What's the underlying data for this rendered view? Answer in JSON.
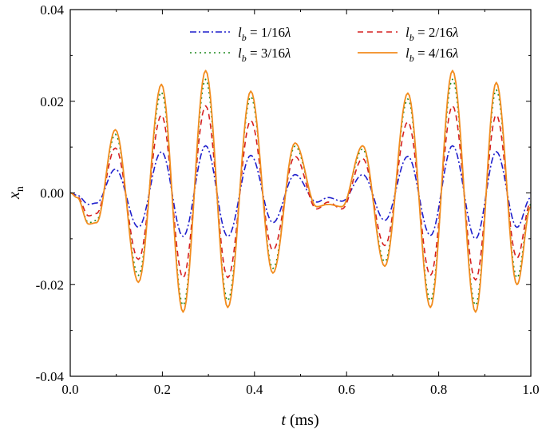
{
  "chart_data": {
    "type": "line",
    "title": "",
    "xlabel": "t (ms)",
    "ylabel": "x_n",
    "xlim": [
      0.0,
      1.0
    ],
    "ylim": [
      -0.04,
      0.04
    ],
    "xticks": [
      "0.0",
      "0.2",
      "0.4",
      "0.6",
      "0.8",
      "1.0"
    ],
    "yticks": [
      "-0.04",
      "-0.02",
      "0.00",
      "0.02",
      "0.04"
    ],
    "legend_position": "top-right",
    "grid": false,
    "series": [
      {
        "name": "l_b = 1/16λ",
        "label_parts": [
          "l",
          "b",
          " = 1/16",
          "λ"
        ],
        "color": "#1f1fcc",
        "style": "dash-dot",
        "points": [
          [
            0,
            0
          ],
          [
            0.015,
            -0.0005
          ],
          [
            0.04,
            -0.0025
          ],
          [
            0.057,
            -0.0022
          ],
          [
            0.098,
            0.0052
          ],
          [
            0.148,
            -0.0075
          ],
          [
            0.198,
            0.009
          ],
          [
            0.245,
            -0.0095
          ],
          [
            0.294,
            0.0103
          ],
          [
            0.342,
            -0.0095
          ],
          [
            0.392,
            0.0082
          ],
          [
            0.44,
            -0.0065
          ],
          [
            0.488,
            0.004
          ],
          [
            0.535,
            -0.002
          ],
          [
            0.56,
            -0.001
          ],
          [
            0.59,
            -0.0018
          ],
          [
            0.635,
            0.004
          ],
          [
            0.683,
            -0.006
          ],
          [
            0.733,
            0.008
          ],
          [
            0.782,
            -0.0093
          ],
          [
            0.83,
            0.0103
          ],
          [
            0.88,
            -0.01
          ],
          [
            0.925,
            0.009
          ],
          [
            0.97,
            -0.0075
          ],
          [
            1.0,
            -0.001
          ]
        ]
      },
      {
        "name": "l_b = 2/16λ",
        "label_parts": [
          "l",
          "b",
          " = 2/16",
          "λ"
        ],
        "color": "#d62020",
        "style": "dashed",
        "points": [
          [
            0,
            0
          ],
          [
            0.015,
            -0.0008
          ],
          [
            0.04,
            -0.005
          ],
          [
            0.057,
            -0.0045
          ],
          [
            0.098,
            0.0098
          ],
          [
            0.148,
            -0.0145
          ],
          [
            0.198,
            0.017
          ],
          [
            0.245,
            -0.0185
          ],
          [
            0.294,
            0.019
          ],
          [
            0.342,
            -0.0185
          ],
          [
            0.392,
            0.0158
          ],
          [
            0.44,
            -0.0125
          ],
          [
            0.488,
            0.008
          ],
          [
            0.535,
            -0.0035
          ],
          [
            0.56,
            -0.002
          ],
          [
            0.59,
            -0.0035
          ],
          [
            0.635,
            0.0075
          ],
          [
            0.683,
            -0.0115
          ],
          [
            0.733,
            0.0155
          ],
          [
            0.782,
            -0.018
          ],
          [
            0.83,
            0.019
          ],
          [
            0.88,
            -0.019
          ],
          [
            0.925,
            0.017
          ],
          [
            0.97,
            -0.0142
          ],
          [
            1.0,
            -0.002
          ]
        ]
      },
      {
        "name": "l_b = 3/16λ",
        "label_parts": [
          "l",
          "b",
          " = 3/16",
          "λ"
        ],
        "color": "#1f8a1f",
        "style": "dotted",
        "points": [
          [
            0,
            0
          ],
          [
            0.015,
            -0.001
          ],
          [
            0.04,
            -0.0065
          ],
          [
            0.057,
            -0.006
          ],
          [
            0.098,
            0.0128
          ],
          [
            0.148,
            -0.018
          ],
          [
            0.198,
            0.022
          ],
          [
            0.245,
            -0.0245
          ],
          [
            0.294,
            0.0248
          ],
          [
            0.342,
            -0.0235
          ],
          [
            0.392,
            0.021
          ],
          [
            0.44,
            -0.0165
          ],
          [
            0.488,
            0.0102
          ],
          [
            0.535,
            -0.003
          ],
          [
            0.56,
            -0.0025
          ],
          [
            0.59,
            -0.003
          ],
          [
            0.635,
            0.0096
          ],
          [
            0.683,
            -0.015
          ],
          [
            0.733,
            0.0205
          ],
          [
            0.782,
            -0.0235
          ],
          [
            0.83,
            0.0248
          ],
          [
            0.88,
            -0.0245
          ],
          [
            0.925,
            0.0225
          ],
          [
            0.97,
            -0.0185
          ],
          [
            1.0,
            -0.0025
          ]
        ]
      },
      {
        "name": "l_b = 4/16λ",
        "label_parts": [
          "l",
          "b",
          " = 4/16",
          "λ"
        ],
        "color": "#f28c1e",
        "style": "solid",
        "points": [
          [
            0,
            0
          ],
          [
            0.015,
            -0.001
          ],
          [
            0.04,
            -0.0068
          ],
          [
            0.057,
            -0.0065
          ],
          [
            0.098,
            0.0138
          ],
          [
            0.148,
            -0.0195
          ],
          [
            0.198,
            0.0237
          ],
          [
            0.245,
            -0.026
          ],
          [
            0.294,
            0.0267
          ],
          [
            0.342,
            -0.025
          ],
          [
            0.392,
            0.0222
          ],
          [
            0.44,
            -0.0175
          ],
          [
            0.488,
            0.0109
          ],
          [
            0.535,
            -0.003
          ],
          [
            0.56,
            -0.0025
          ],
          [
            0.59,
            -0.003
          ],
          [
            0.635,
            0.0103
          ],
          [
            0.683,
            -0.016
          ],
          [
            0.733,
            0.0218
          ],
          [
            0.782,
            -0.025
          ],
          [
            0.83,
            0.0267
          ],
          [
            0.88,
            -0.026
          ],
          [
            0.925,
            0.0241
          ],
          [
            0.97,
            -0.02
          ],
          [
            1.0,
            -0.003
          ]
        ]
      }
    ]
  }
}
